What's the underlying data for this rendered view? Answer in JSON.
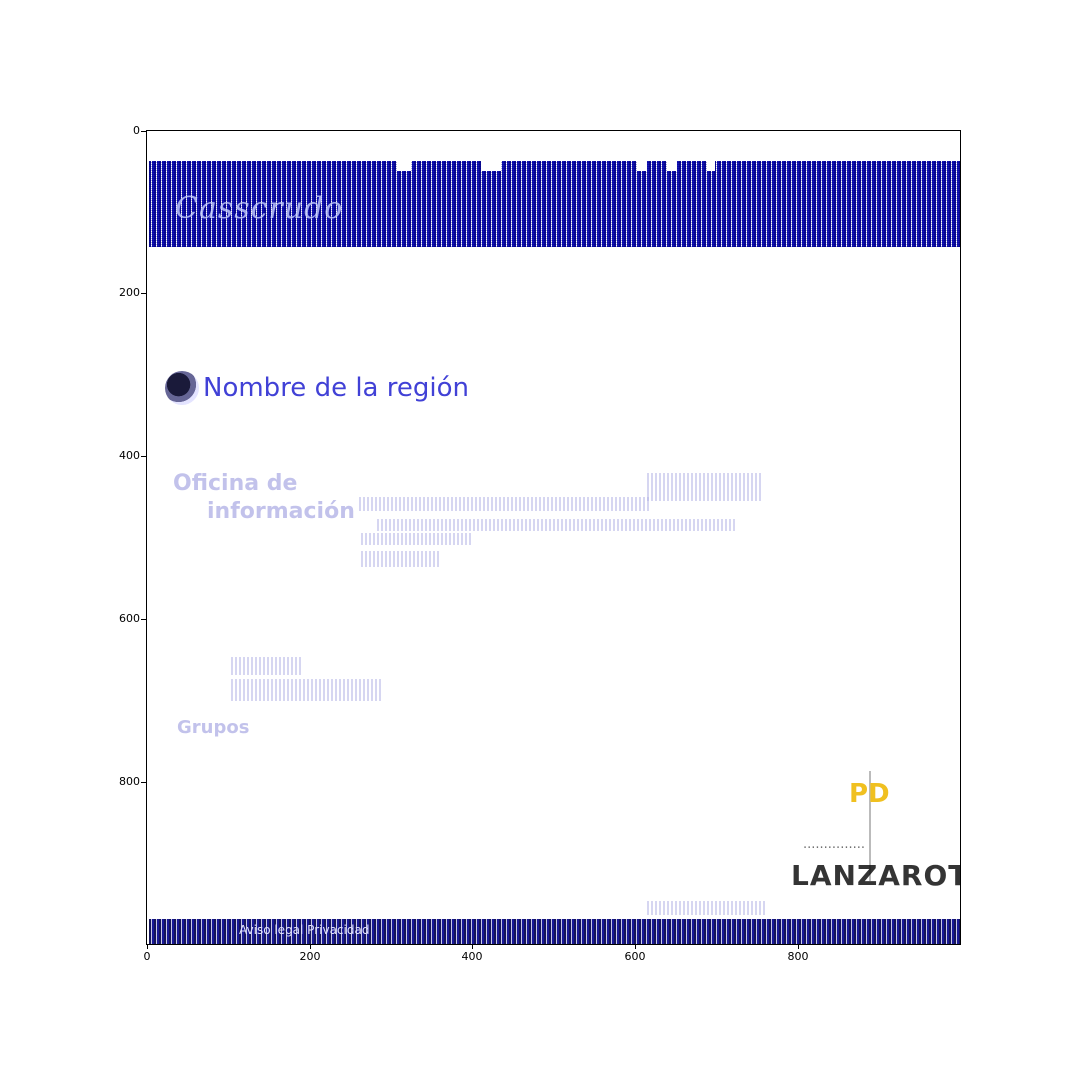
{
  "figure": {
    "y_ticks": [
      "0",
      "200",
      "400",
      "600",
      "800"
    ],
    "x_ticks": [
      "0",
      "200",
      "400",
      "600",
      "800"
    ]
  },
  "screenshot": {
    "banner": {
      "logo_text": "Casscrudo"
    },
    "page": {
      "title": "Nombre de la región",
      "faint_heading_1": "Oficina de",
      "faint_heading_2": "información",
      "faint_sub": "Grupos"
    },
    "footer": {
      "text": "Aviso legal Privacidad"
    },
    "brand": {
      "top": "PD",
      "main": "LANZAROTO"
    }
  },
  "colors": {
    "banner_blue": "#00008c",
    "title_blue": "#2020d0",
    "brand_yellow": "#f0c020"
  }
}
